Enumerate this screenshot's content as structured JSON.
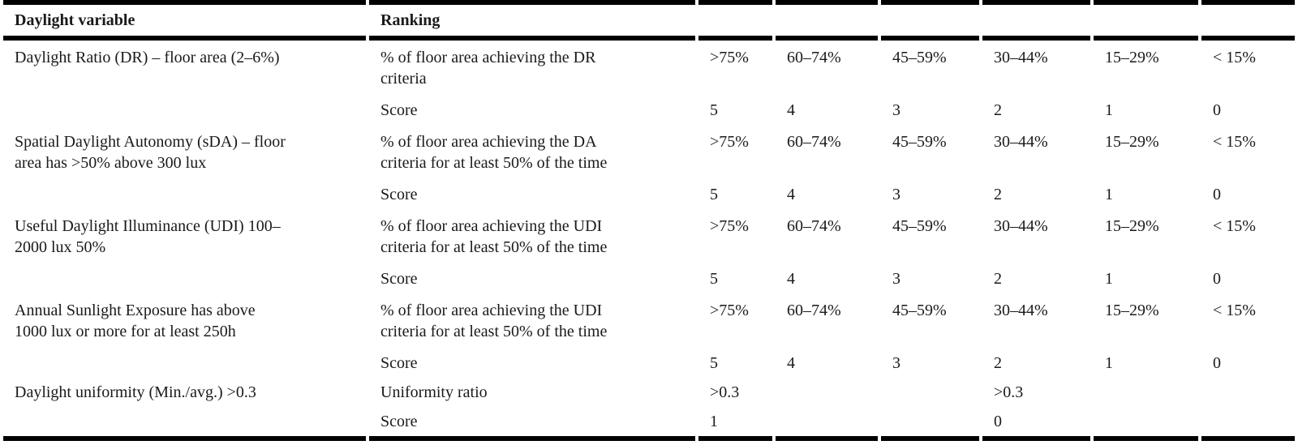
{
  "colors": {
    "background": "#ffffff",
    "text": "#1a1a1a",
    "rule": "#000000"
  },
  "table": {
    "headers": {
      "variable": "Daylight variable",
      "ranking": "Ranking"
    },
    "score_label": "Score",
    "rows": [
      {
        "variable": "Daylight Ratio (DR) – floor area (2–6%)",
        "criteria": "% of floor area achieving the DR\ncriteria",
        "ranges": [
          ">75%",
          "60–74%",
          "45–59%",
          "30–44%",
          "15–29%",
          "< 15%"
        ],
        "scores": [
          "5",
          "4",
          "3",
          "2",
          "1",
          "0"
        ]
      },
      {
        "variable": "Spatial Daylight Autonomy (sDA) – floor\narea has >50% above 300 lux",
        "criteria": "% of floor area achieving the DA\ncriteria for at least 50% of the time",
        "ranges": [
          ">75%",
          "60–74%",
          "45–59%",
          "30–44%",
          "15–29%",
          "< 15%"
        ],
        "scores": [
          "5",
          "4",
          "3",
          "2",
          "1",
          "0"
        ]
      },
      {
        "variable": "Useful Daylight Illuminance (UDI) 100–\n2000 lux 50%",
        "criteria": "% of floor area achieving the UDI\ncriteria for at least 50% of the time",
        "ranges": [
          ">75%",
          "60–74%",
          "45–59%",
          "30–44%",
          "15–29%",
          "< 15%"
        ],
        "scores": [
          "5",
          "4",
          "3",
          "2",
          "1",
          "0"
        ]
      },
      {
        "variable": "Annual Sunlight Exposure has above\n1000 lux or more for at least 250h",
        "criteria": "% of floor area achieving the UDI\ncriteria for at least 50% of the time",
        "ranges": [
          ">75%",
          "60–74%",
          "45–59%",
          "30–44%",
          "15–29%",
          "< 15%"
        ],
        "scores": [
          "5",
          "4",
          "3",
          "2",
          "1",
          "0"
        ]
      },
      {
        "variable": "Daylight uniformity (Min./avg.) >0.3",
        "criteria": "Uniformity ratio",
        "ranges": [
          ">0.3",
          "",
          "",
          ">0.3",
          "",
          ""
        ],
        "scores": [
          "1",
          "",
          "",
          "0",
          "",
          ""
        ]
      }
    ]
  }
}
